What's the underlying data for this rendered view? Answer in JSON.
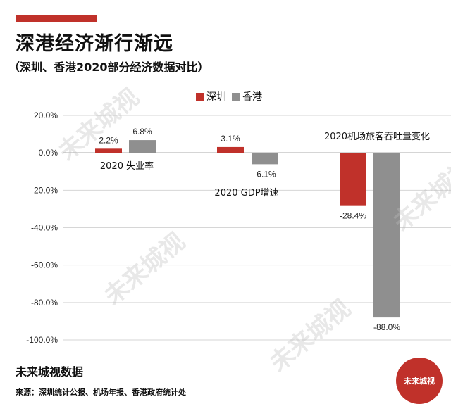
{
  "title": "深港经济渐行渐远",
  "subtitle": "（深圳、香港2020部分经济数据对比）",
  "watermark": "未来城视",
  "brand": "未来城视数据",
  "source": "来源：深圳统计公报、机场年报、香港政府统计处",
  "stamp": "未来城视",
  "colors": {
    "accent": "#c0312a",
    "series_shenzhen": "#c0312a",
    "series_hongkong": "#8f8f8f"
  },
  "chart_data": {
    "type": "bar",
    "categories": [
      "2020 失业率",
      "2020 GDP增速",
      "2020机场旅客吞吐量变化"
    ],
    "series": [
      {
        "name": "深圳",
        "values": [
          2.2,
          3.1,
          -28.4
        ],
        "labels": [
          "2.2%",
          "3.1%",
          "-28.4%"
        ]
      },
      {
        "name": "香港",
        "values": [
          6.8,
          -6.1,
          -88.0
        ],
        "labels": [
          "6.8%",
          "-6.1%",
          "-88.0%"
        ]
      }
    ],
    "ylim": [
      -100,
      20
    ],
    "yticks": [
      20,
      0,
      -20,
      -40,
      -60,
      -80,
      -100
    ],
    "ytick_labels": [
      "20.0%",
      "0.0%",
      "-20.0%",
      "-40.0%",
      "-60.0%",
      "-80.0%",
      "-100.0%"
    ],
    "grid": true,
    "legend": "top-center"
  }
}
